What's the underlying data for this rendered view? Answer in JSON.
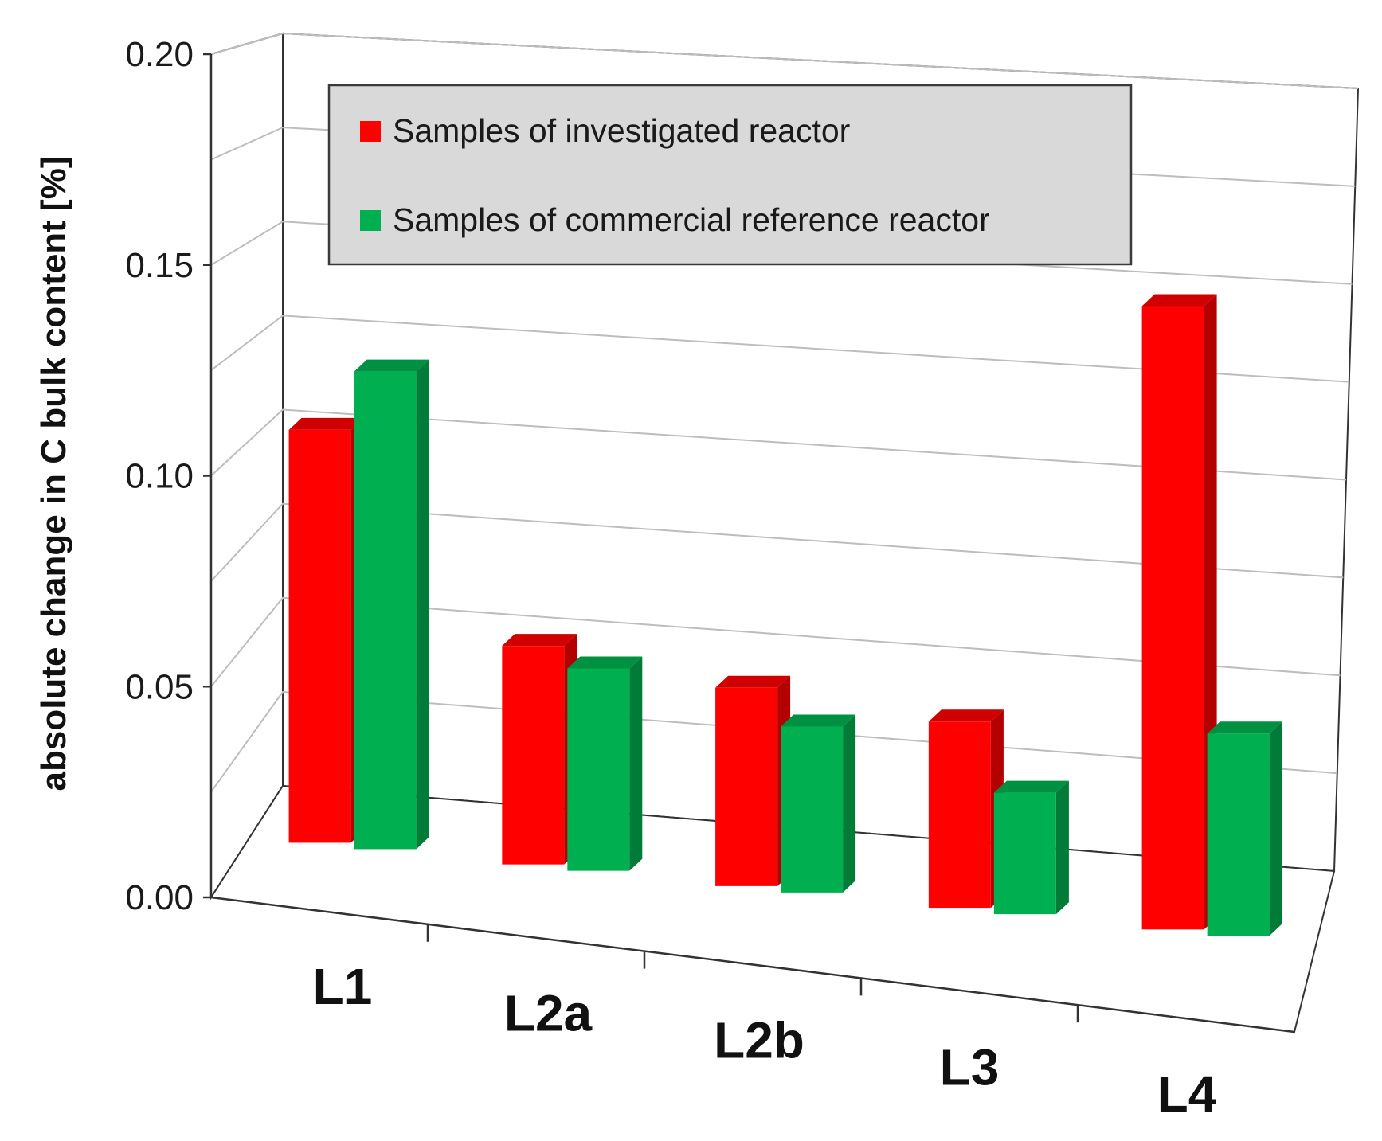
{
  "chart_data": {
    "type": "bar",
    "style": "3d-clustered-column",
    "title": "",
    "xlabel": "",
    "ylabel": "absolute change in C bulk content [%]",
    "ylim": [
      0,
      0.2
    ],
    "yticks": [
      0.0,
      0.05,
      0.1,
      0.15,
      0.2
    ],
    "ytick_labels": [
      "0.00",
      "0.05",
      "0.10",
      "0.15",
      "0.20"
    ],
    "grid": true,
    "legend_position": "top-left",
    "categories": [
      "L1",
      "L2a",
      "L2b",
      "L3",
      "L4"
    ],
    "series": [
      {
        "name": "Samples of investigated reactor",
        "color": "#ff0000",
        "values": [
          0.102,
          0.054,
          0.049,
          0.046,
          0.154
        ]
      },
      {
        "name": "Samples of commercial reference reactor",
        "color": "#00b050",
        "values": [
          0.118,
          0.05,
          0.041,
          0.03,
          0.05
        ]
      }
    ]
  }
}
